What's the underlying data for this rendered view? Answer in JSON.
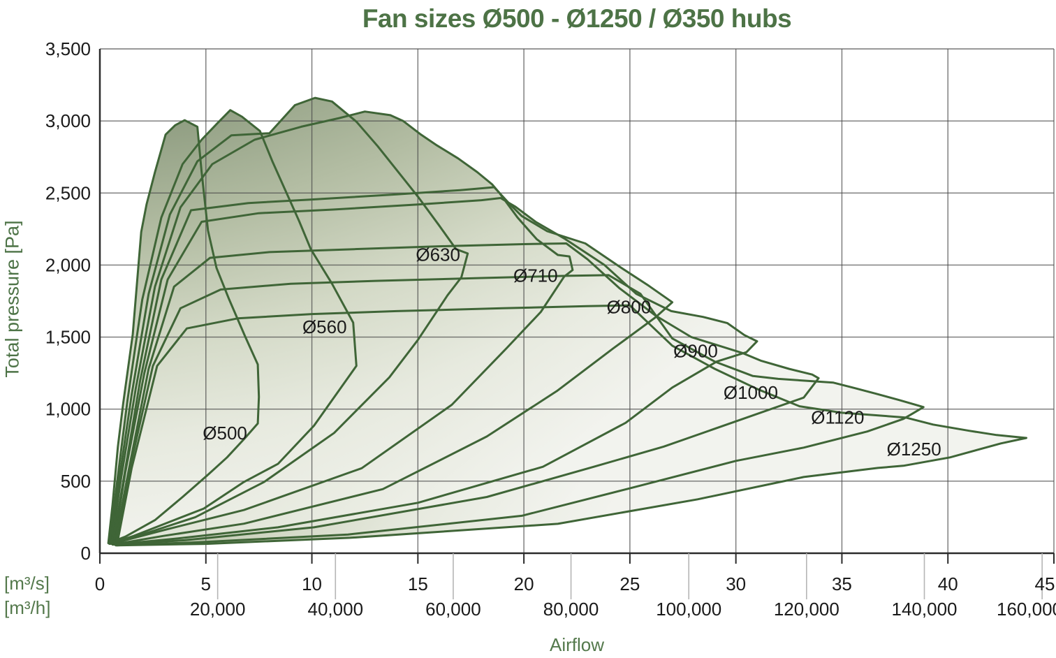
{
  "chart_data": {
    "type": "area",
    "title": "Fan sizes Ø500 - Ø1250 / Ø350 hubs",
    "xlabel": "Airflow",
    "ylabel": "Total pressure [Pa]",
    "x_unit_row1": "[m³/s]",
    "x_unit_row2": "[m³/h]",
    "x_range_m3s": [
      0,
      45
    ],
    "y_range_pa": [
      0,
      3500
    ],
    "grid": true,
    "legend_position": "labels-inside-regions",
    "y_ticks": [
      {
        "p": 0,
        "label": "0"
      },
      {
        "p": 500,
        "label": "500"
      },
      {
        "p": 1000,
        "label": "1,000"
      },
      {
        "p": 1500,
        "label": "1,500"
      },
      {
        "p": 2000,
        "label": "2,000"
      },
      {
        "p": 2500,
        "label": "2,500"
      },
      {
        "p": 3000,
        "label": "3,000"
      },
      {
        "p": 3500,
        "label": "3,500"
      }
    ],
    "x_ticks_m3s": [
      {
        "v": 0,
        "label": "0"
      },
      {
        "v": 5,
        "label": "5"
      },
      {
        "v": 10,
        "label": "10"
      },
      {
        "v": 15,
        "label": "15"
      },
      {
        "v": 20,
        "label": "20"
      },
      {
        "v": 25,
        "label": "25"
      },
      {
        "v": 30,
        "label": "30"
      },
      {
        "v": 35,
        "label": "35"
      },
      {
        "v": 40,
        "label": "40"
      },
      {
        "v": 45,
        "label": "45"
      }
    ],
    "x_ticks_m3h": [
      {
        "v": 5.556,
        "label": "20,000"
      },
      {
        "v": 11.111,
        "label": "40,000"
      },
      {
        "v": 16.667,
        "label": "60,000"
      },
      {
        "v": 22.222,
        "label": "80,000"
      },
      {
        "v": 27.778,
        "label": "100,000"
      },
      {
        "v": 33.333,
        "label": "120,000"
      },
      {
        "v": 38.889,
        "label": "140,000"
      },
      {
        "v": 44.444,
        "label": "160,000"
      }
    ],
    "colors": {
      "background": "#ffffff",
      "envelope_stroke": "#3f6537",
      "title_green": "#4d7346",
      "units_green": "#54794c",
      "tick_text": "#1a1a1a",
      "fan_label_text": "#1b1b1b",
      "grid": "#4a4a4a",
      "axis": "#2b2b2b",
      "light_tick": "#b5b5b5",
      "gradient_stops": [
        "#8e9c80",
        "#b3bda3",
        "#d3d9c6",
        "#e7eadf",
        "#f2f3ee"
      ]
    },
    "series": [
      {
        "name": "Ø500",
        "label_at": {
          "v": 5.9,
          "p": 835
        },
        "points": [
          [
            0.4,
            70
          ],
          [
            0.6,
            340
          ],
          [
            0.85,
            740
          ],
          [
            1.1,
            1040
          ],
          [
            1.55,
            1520
          ],
          [
            1.95,
            2230
          ],
          [
            2.2,
            2420
          ],
          [
            2.6,
            2645
          ],
          [
            3.1,
            2905
          ],
          [
            3.55,
            2970
          ],
          [
            4,
            3005
          ],
          [
            4.6,
            2960
          ],
          [
            4.8,
            2645
          ],
          [
            5.1,
            2240
          ],
          [
            5.5,
            1980
          ],
          [
            6.1,
            1760
          ],
          [
            6.85,
            1505
          ],
          [
            7.45,
            1310
          ],
          [
            7.5,
            1085
          ],
          [
            7.45,
            900
          ],
          [
            6.85,
            800
          ],
          [
            6,
            665
          ],
          [
            5.1,
            545
          ],
          [
            3.9,
            390
          ],
          [
            2.6,
            230
          ],
          [
            1.2,
            115
          ]
        ]
      },
      {
        "name": "Ø560",
        "label_at": {
          "v": 10.6,
          "p": 1570
        },
        "points": [
          [
            0.45,
            65
          ],
          [
            0.8,
            480
          ],
          [
            1.3,
            1060
          ],
          [
            2,
            1760
          ],
          [
            2.9,
            2330
          ],
          [
            3.9,
            2700
          ],
          [
            4.8,
            2870
          ],
          [
            5.55,
            2985
          ],
          [
            6.15,
            3075
          ],
          [
            6.7,
            3030
          ],
          [
            7.55,
            2930
          ],
          [
            8.15,
            2715
          ],
          [
            9.4,
            2305
          ],
          [
            9.95,
            2110
          ],
          [
            10.95,
            1870
          ],
          [
            11.95,
            1600
          ],
          [
            12.1,
            1300
          ],
          [
            10.1,
            885
          ],
          [
            8.4,
            620
          ],
          [
            6.8,
            495
          ],
          [
            4.9,
            310
          ],
          [
            3.5,
            230
          ],
          [
            1.6,
            120
          ]
        ]
      },
      {
        "name": "Ø630",
        "label_at": {
          "v": 15.95,
          "p": 2072
        },
        "points": [
          [
            0.5,
            65
          ],
          [
            0.9,
            500
          ],
          [
            1.5,
            1100
          ],
          [
            2.3,
            1800
          ],
          [
            3.3,
            2350
          ],
          [
            4.6,
            2720
          ],
          [
            6.2,
            2900
          ],
          [
            8,
            2915
          ],
          [
            9.2,
            3110
          ],
          [
            10.15,
            3160
          ],
          [
            10.95,
            3135
          ],
          [
            12.1,
            2995
          ],
          [
            13.1,
            2825
          ],
          [
            15,
            2475
          ],
          [
            16,
            2275
          ],
          [
            16.8,
            2110
          ],
          [
            17.35,
            2080
          ],
          [
            17.05,
            1915
          ],
          [
            16.4,
            1790
          ],
          [
            15,
            1480
          ],
          [
            13.65,
            1220
          ],
          [
            11.05,
            835
          ],
          [
            7.75,
            495
          ],
          [
            4.5,
            250
          ],
          [
            2,
            130
          ]
        ]
      },
      {
        "name": "Ø710",
        "label_at": {
          "v": 20.55,
          "p": 1927
        },
        "points": [
          [
            0.55,
            65
          ],
          [
            1,
            520
          ],
          [
            1.7,
            1150
          ],
          [
            2.6,
            1850
          ],
          [
            3.8,
            2400
          ],
          [
            5.3,
            2700
          ],
          [
            7.3,
            2870
          ],
          [
            9.5,
            2960
          ],
          [
            11.3,
            3020
          ],
          [
            12.5,
            3065
          ],
          [
            13.7,
            3040
          ],
          [
            14.3,
            3000
          ],
          [
            15.1,
            2910
          ],
          [
            15.9,
            2830
          ],
          [
            16.9,
            2740
          ],
          [
            17.8,
            2645
          ],
          [
            18.5,
            2560
          ],
          [
            18.85,
            2500
          ],
          [
            19.7,
            2330
          ],
          [
            20.6,
            2180
          ],
          [
            21.6,
            2070
          ],
          [
            22.15,
            2060
          ],
          [
            22.3,
            1965
          ],
          [
            21.9,
            1920
          ],
          [
            20.8,
            1675
          ],
          [
            19.2,
            1425
          ],
          [
            16.6,
            1030
          ],
          [
            12.35,
            590
          ],
          [
            6.8,
            300
          ],
          [
            3,
            160
          ]
        ]
      },
      {
        "name": "Ø800",
        "label_at": {
          "v": 24.95,
          "p": 1708
        },
        "points": [
          [
            0.6,
            60
          ],
          [
            1.15,
            540
          ],
          [
            1.9,
            1200
          ],
          [
            2.9,
            1900
          ],
          [
            4.3,
            2380
          ],
          [
            7,
            2430
          ],
          [
            10,
            2455
          ],
          [
            14,
            2490
          ],
          [
            17,
            2520
          ],
          [
            18.6,
            2540
          ],
          [
            19.35,
            2420
          ],
          [
            19.9,
            2340
          ],
          [
            21.1,
            2235
          ],
          [
            22.9,
            2150
          ],
          [
            24.55,
            1985
          ],
          [
            25.9,
            1855
          ],
          [
            27,
            1742
          ],
          [
            26.2,
            1636
          ],
          [
            24.2,
            1420
          ],
          [
            21.55,
            1125
          ],
          [
            18.25,
            810
          ],
          [
            13.35,
            445
          ],
          [
            6.8,
            205
          ],
          [
            3,
            120
          ]
        ]
      },
      {
        "name": "Ø900",
        "label_at": {
          "v": 28.1,
          "p": 1403
        },
        "points": [
          [
            0.65,
            60
          ],
          [
            1.2,
            560
          ],
          [
            2.1,
            1250
          ],
          [
            3.2,
            1900
          ],
          [
            4.8,
            2300
          ],
          [
            7.5,
            2360
          ],
          [
            11,
            2385
          ],
          [
            15,
            2420
          ],
          [
            18,
            2450
          ],
          [
            18.9,
            2465
          ],
          [
            19.6,
            2405
          ],
          [
            20.55,
            2300
          ],
          [
            21.9,
            2185
          ],
          [
            23.8,
            2000
          ],
          [
            25.3,
            1800
          ],
          [
            26.95,
            1680
          ],
          [
            28.45,
            1640
          ],
          [
            29.6,
            1597
          ],
          [
            30.4,
            1514
          ],
          [
            31,
            1471
          ],
          [
            30.5,
            1395
          ],
          [
            29.1,
            1330
          ],
          [
            27,
            1150
          ],
          [
            24.8,
            905
          ],
          [
            20.9,
            600
          ],
          [
            15,
            350
          ],
          [
            8.4,
            180
          ],
          [
            3.5,
            100
          ]
        ]
      },
      {
        "name": "Ø1000",
        "label_at": {
          "v": 30.7,
          "p": 1116
        },
        "points": [
          [
            0.7,
            60
          ],
          [
            1.35,
            570
          ],
          [
            2.3,
            1280
          ],
          [
            3.5,
            1850
          ],
          [
            5.2,
            2050
          ],
          [
            8,
            2090
          ],
          [
            12,
            2110
          ],
          [
            16,
            2130
          ],
          [
            20,
            2145
          ],
          [
            22,
            2150
          ],
          [
            23,
            2040
          ],
          [
            24.5,
            1840
          ],
          [
            26.2,
            1650
          ],
          [
            27.9,
            1500
          ],
          [
            30.3,
            1390
          ],
          [
            31.2,
            1335
          ],
          [
            32.5,
            1280
          ],
          [
            33.6,
            1240
          ],
          [
            33.9,
            1215
          ],
          [
            33.2,
            1080
          ],
          [
            30,
            915
          ],
          [
            26.6,
            740
          ],
          [
            23.3,
            600
          ],
          [
            18.25,
            390
          ],
          [
            10.1,
            180
          ],
          [
            4,
            90
          ]
        ]
      },
      {
        "name": "Ø1120",
        "label_at": {
          "v": 34.8,
          "p": 942
        },
        "points": [
          [
            0.75,
            55
          ],
          [
            1.4,
            580
          ],
          [
            2.5,
            1300
          ],
          [
            3.8,
            1700
          ],
          [
            5.7,
            1830
          ],
          [
            9,
            1870
          ],
          [
            13,
            1890
          ],
          [
            18,
            1910
          ],
          [
            22,
            1925
          ],
          [
            24,
            1930
          ],
          [
            25.5,
            1800
          ],
          [
            27,
            1490
          ],
          [
            29,
            1330
          ],
          [
            30.8,
            1230
          ],
          [
            32,
            1210
          ],
          [
            33.5,
            1195
          ],
          [
            34.6,
            1184
          ],
          [
            35.6,
            1146
          ],
          [
            36.6,
            1107
          ],
          [
            37.7,
            1063
          ],
          [
            38.5,
            1029
          ],
          [
            38.85,
            1014
          ],
          [
            38.3,
            966
          ],
          [
            37.9,
            932
          ],
          [
            36.2,
            845
          ],
          [
            33.2,
            733
          ],
          [
            30,
            641
          ],
          [
            24.9,
            447
          ],
          [
            19.9,
            260
          ],
          [
            11.7,
            130
          ],
          [
            4.5,
            75
          ]
        ]
      },
      {
        "name": "Ø1250",
        "label_at": {
          "v": 38.4,
          "p": 723
        },
        "points": [
          [
            0.8,
            55
          ],
          [
            1.5,
            590
          ],
          [
            2.7,
            1300
          ],
          [
            4.1,
            1560
          ],
          [
            6.5,
            1630
          ],
          [
            10,
            1660
          ],
          [
            14,
            1680
          ],
          [
            19,
            1700
          ],
          [
            23,
            1715
          ],
          [
            25,
            1720
          ],
          [
            27,
            1440
          ],
          [
            29,
            1280
          ],
          [
            31,
            1140
          ],
          [
            33,
            1020
          ],
          [
            35,
            975
          ],
          [
            38,
            942
          ],
          [
            39.3,
            893
          ],
          [
            41,
            850
          ],
          [
            42.3,
            820
          ],
          [
            43.7,
            800
          ],
          [
            42.5,
            762
          ],
          [
            40.1,
            665
          ],
          [
            37.9,
            607
          ],
          [
            36.7,
            592
          ],
          [
            33.2,
            529
          ],
          [
            28.2,
            374
          ],
          [
            21.6,
            204
          ],
          [
            11.8,
            107
          ],
          [
            5,
            65
          ]
        ]
      }
    ]
  }
}
